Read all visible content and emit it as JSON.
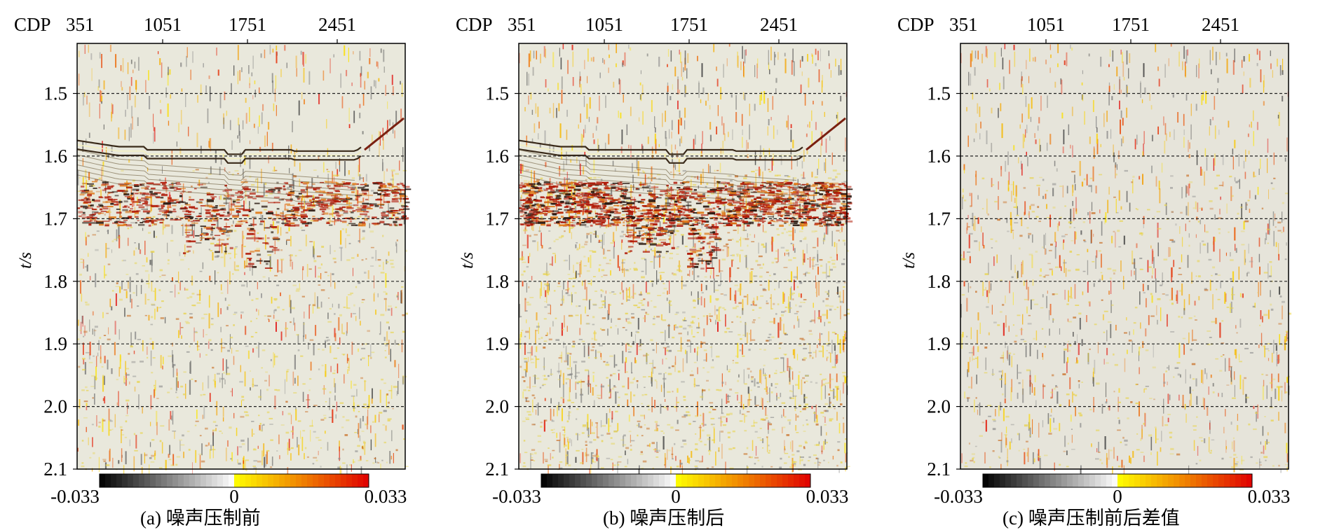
{
  "figure": {
    "panels": [
      {
        "id": "a",
        "caption": "(a) 噪声压制前"
      },
      {
        "id": "b",
        "caption": "(b) 噪声压制后"
      },
      {
        "id": "c",
        "caption": "(c) 噪声压制前后差值"
      }
    ],
    "cdp_prefix": "CDP",
    "cdp_ticks": [
      "351",
      "1051",
      "1751",
      "2451"
    ],
    "y_label": "t/s",
    "y_ticks": [
      "1.5",
      "1.6",
      "1.7",
      "1.8",
      "1.9",
      "2.0",
      "2.1"
    ],
    "colorbar_labels": [
      "-0.033",
      "0",
      "0.033"
    ]
  },
  "chart_data": [
    {
      "type": "heatmap",
      "title": "(a) 噪声压制前",
      "xlabel": "CDP",
      "ylabel": "t/s",
      "x_ticks": [
        351,
        1051,
        1751,
        2451
      ],
      "y_ticks": [
        1.5,
        1.6,
        1.7,
        1.8,
        1.9,
        2.0,
        2.1
      ],
      "ylim": [
        2.1,
        1.42
      ],
      "color_range": [
        -0.033,
        0.033
      ],
      "colormap": [
        "#000000",
        "#ffffff",
        "#ffff00",
        "#e00000"
      ],
      "grid": "horizontal dashed"
    },
    {
      "type": "heatmap",
      "title": "(b) 噪声压制后",
      "xlabel": "CDP",
      "ylabel": "t/s",
      "x_ticks": [
        351,
        1051,
        1751,
        2451
      ],
      "y_ticks": [
        1.5,
        1.6,
        1.7,
        1.8,
        1.9,
        2.0,
        2.1
      ],
      "ylim": [
        2.1,
        1.42
      ],
      "color_range": [
        -0.033,
        0.033
      ],
      "colormap": [
        "#000000",
        "#ffffff",
        "#ffff00",
        "#e00000"
      ],
      "grid": "horizontal dashed"
    },
    {
      "type": "heatmap",
      "title": "(c) 噪声压制前后差值",
      "xlabel": "CDP",
      "ylabel": "t/s",
      "x_ticks": [
        351,
        1051,
        1751,
        2451
      ],
      "y_ticks": [
        1.5,
        1.6,
        1.7,
        1.8,
        1.9,
        2.0,
        2.1
      ],
      "ylim": [
        2.1,
        1.42
      ],
      "color_range": [
        -0.033,
        0.033
      ],
      "colormap": [
        "#000000",
        "#ffffff",
        "#ffff00",
        "#e00000"
      ],
      "grid": "horizontal dashed"
    }
  ]
}
